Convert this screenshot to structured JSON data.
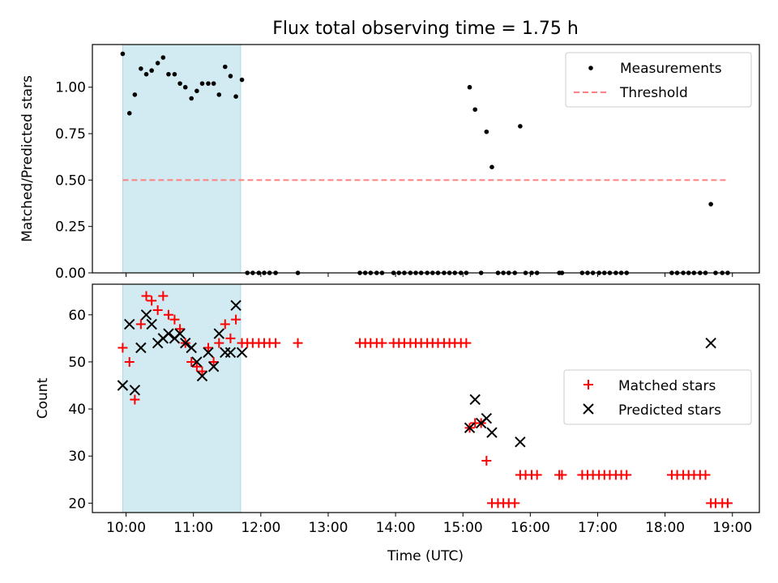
{
  "title": "Flux total observing time = 1.75 h",
  "colors": {
    "highlight": "#add8e6",
    "measurement": "#000000",
    "threshold": "#ff8080",
    "matched": "#ff0000",
    "predicted": "#000000"
  },
  "chart_data": [
    {
      "type": "scatter",
      "ylabel": "Matched/Predicted stars",
      "xlim": [
        9.5,
        19.4
      ],
      "ylim": [
        0,
        1.23
      ],
      "yticks": [
        0,
        0.25,
        0.5,
        0.75,
        1.0
      ],
      "ytick_labels": [
        "0.00",
        "0.25",
        "0.50",
        "0.75",
        "1.00"
      ],
      "highlight_span": [
        9.95,
        11.7
      ],
      "legend": "upper right",
      "series": [
        {
          "name": "Measurements",
          "marker": "dot",
          "x": [
            9.95,
            10.05,
            10.13,
            10.22,
            10.3,
            10.38,
            10.47,
            10.55,
            10.63,
            10.72,
            10.8,
            10.88,
            10.97,
            11.05,
            11.13,
            11.22,
            11.3,
            11.38,
            11.47,
            11.55,
            11.63,
            11.72,
            11.8,
            11.88,
            11.97,
            12.05,
            12.13,
            12.22,
            12.55,
            13.47,
            13.55,
            13.63,
            13.72,
            13.8,
            13.97,
            14.05,
            14.13,
            14.22,
            14.3,
            14.38,
            14.47,
            14.55,
            14.63,
            14.72,
            14.8,
            14.88,
            14.97,
            15.05,
            15.1,
            15.18,
            15.27,
            15.35,
            15.43,
            15.52,
            15.6,
            15.68,
            15.77,
            15.85,
            15.93,
            16.02,
            16.1,
            16.43,
            16.47,
            16.77,
            16.85,
            16.93,
            17.02,
            17.1,
            17.18,
            17.27,
            17.35,
            17.43,
            18.1,
            18.18,
            18.27,
            18.35,
            18.43,
            18.52,
            18.6,
            18.68,
            18.75,
            18.85,
            18.93
          ],
          "y": [
            1.18,
            0.86,
            0.96,
            1.1,
            1.07,
            1.09,
            1.13,
            1.16,
            1.07,
            1.07,
            1.02,
            1.0,
            0.94,
            0.98,
            1.02,
            1.02,
            1.02,
            0.96,
            1.11,
            1.06,
            0.95,
            1.04,
            0.0,
            0.0,
            0.0,
            0.0,
            0.0,
            0.0,
            0.0,
            0.0,
            0.0,
            0.0,
            0.0,
            0.0,
            0.0,
            0.0,
            0.0,
            0.0,
            0.0,
            0.0,
            0.0,
            0.0,
            0.0,
            0.0,
            0.0,
            0.0,
            0.0,
            0.0,
            1.0,
            0.88,
            0.0,
            0.76,
            0.57,
            0.0,
            0.0,
            0.0,
            0.0,
            0.79,
            0.0,
            0.0,
            0.0,
            0.0,
            0.0,
            0.0,
            0.0,
            0.0,
            0.0,
            0.0,
            0.0,
            0.0,
            0.0,
            0.0,
            0.0,
            0.0,
            0.0,
            0.0,
            0.0,
            0.0,
            0.0,
            0.37,
            0.0,
            0.0,
            0.0
          ]
        },
        {
          "name": "Threshold",
          "marker": "dashed-line",
          "x": [
            9.95,
            18.95
          ],
          "y": [
            0.5,
            0.5
          ]
        }
      ]
    },
    {
      "type": "scatter",
      "xlabel": "Time (UTC)",
      "ylabel": "Count",
      "xlim": [
        9.5,
        19.4
      ],
      "ylim": [
        18,
        66.5
      ],
      "xticks": [
        10,
        11,
        12,
        13,
        14,
        15,
        16,
        17,
        18,
        19
      ],
      "xtick_labels": [
        "10:00",
        "11:00",
        "12:00",
        "13:00",
        "14:00",
        "15:00",
        "16:00",
        "17:00",
        "18:00",
        "19:00"
      ],
      "yticks": [
        20,
        30,
        40,
        50,
        60
      ],
      "ytick_labels": [
        "20",
        "30",
        "40",
        "50",
        "60"
      ],
      "highlight_span": [
        9.95,
        11.7
      ],
      "legend": "center right",
      "series": [
        {
          "name": "Matched stars",
          "marker": "plus",
          "x": [
            9.95,
            10.05,
            10.13,
            10.22,
            10.3,
            10.38,
            10.47,
            10.55,
            10.63,
            10.72,
            10.8,
            10.88,
            10.97,
            11.05,
            11.13,
            11.22,
            11.3,
            11.38,
            11.47,
            11.55,
            11.63,
            11.72,
            11.8,
            11.88,
            11.97,
            12.05,
            12.13,
            12.22,
            12.55,
            13.47,
            13.55,
            13.63,
            13.72,
            13.8,
            13.97,
            14.05,
            14.13,
            14.22,
            14.3,
            14.38,
            14.47,
            14.55,
            14.63,
            14.72,
            14.8,
            14.88,
            14.97,
            15.05,
            15.1,
            15.18,
            15.27,
            15.35,
            15.43,
            15.52,
            15.6,
            15.68,
            15.77,
            15.85,
            15.93,
            16.02,
            16.1,
            16.43,
            16.47,
            16.77,
            16.85,
            16.93,
            17.02,
            17.1,
            17.18,
            17.27,
            17.35,
            17.43,
            18.1,
            18.18,
            18.27,
            18.35,
            18.43,
            18.52,
            18.6,
            18.68,
            18.75,
            18.85,
            18.93
          ],
          "y": [
            53,
            50,
            42,
            58,
            64,
            63,
            61,
            64,
            60,
            59,
            57,
            54,
            50,
            49,
            48,
            53,
            50,
            54,
            58,
            55,
            59,
            54,
            54,
            54,
            54,
            54,
            54,
            54,
            54,
            54,
            54,
            54,
            54,
            54,
            54,
            54,
            54,
            54,
            54,
            54,
            54,
            54,
            54,
            54,
            54,
            54,
            54,
            54,
            36,
            37,
            37,
            29,
            20,
            20,
            20,
            20,
            20,
            26,
            26,
            26,
            26,
            26,
            26,
            26,
            26,
            26,
            26,
            26,
            26,
            26,
            26,
            26,
            26,
            26,
            26,
            26,
            26,
            26,
            26,
            20,
            20,
            20,
            20
          ]
        },
        {
          "name": "Predicted stars",
          "marker": "x",
          "x": [
            9.95,
            10.05,
            10.13,
            10.22,
            10.3,
            10.38,
            10.47,
            10.55,
            10.63,
            10.72,
            10.8,
            10.88,
            10.97,
            11.05,
            11.13,
            11.22,
            11.3,
            11.38,
            11.47,
            11.55,
            11.63,
            11.72,
            15.1,
            15.18,
            15.27,
            15.35,
            15.43,
            15.85,
            18.68
          ],
          "y": [
            45,
            58,
            44,
            53,
            60,
            58,
            54,
            55,
            56,
            55,
            56,
            54,
            53,
            50,
            47,
            52,
            49,
            56,
            52,
            52,
            62,
            52,
            36,
            42,
            37,
            38,
            35,
            33,
            54
          ]
        }
      ]
    }
  ]
}
